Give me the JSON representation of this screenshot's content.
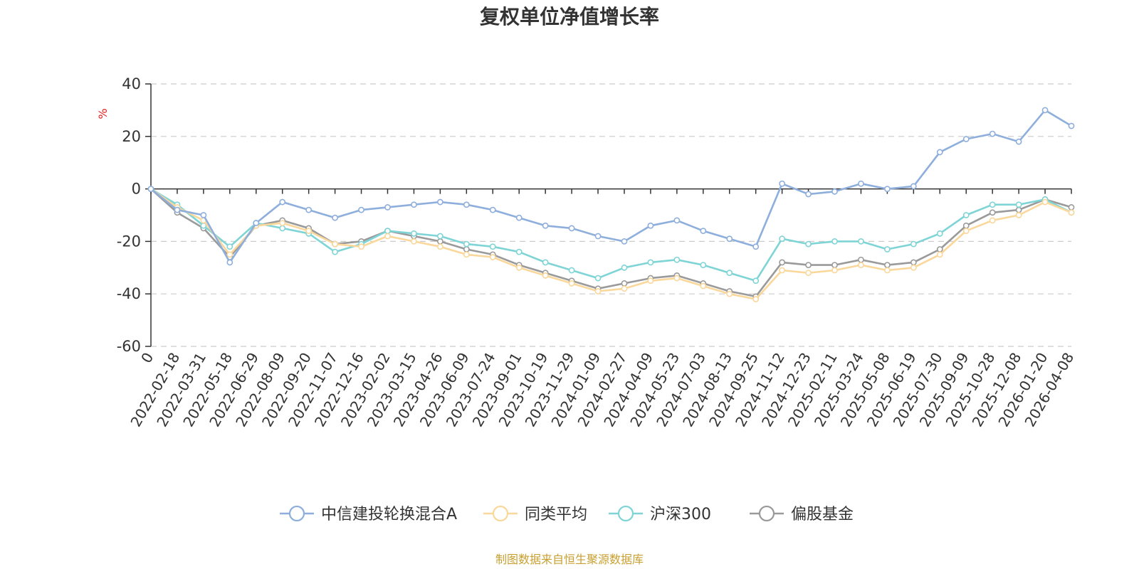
{
  "chart_data": {
    "type": "line",
    "title": "复权单位净值增长率",
    "ylabel": "%",
    "ylim": [
      -60,
      40
    ],
    "yticks": [
      40,
      20,
      0,
      -20,
      -40,
      -60
    ],
    "grid": true,
    "legend_position": "bottom",
    "source": "制图数据来自恒生聚源数据库",
    "x_tick_labels": [
      "0",
      "2022-02-18",
      "2022-03-31",
      "2022-05-18",
      "2022-06-29",
      "2022-08-09",
      "2022-09-20",
      "2022-11-07",
      "2022-12-16",
      "2023-02-02",
      "2023-03-15",
      "2023-04-26",
      "2023-06-09",
      "2023-07-24",
      "2023-09-01",
      "2023-10-19",
      "2023-11-29",
      "2024-01-09",
      "2024-02-27",
      "2024-04-09",
      "2024-05-23",
      "2024-07-03",
      "2024-08-13",
      "2024-09-25",
      "2024-11-12",
      "2024-12-23",
      "2025-02-11",
      "2025-03-24",
      "2025-05-08",
      "2025-06-19",
      "2025-07-30",
      "2025-09-09",
      "2025-10-28",
      "2025-12-08",
      "2026-01-20",
      "2026-04-08"
    ],
    "x_index": [
      0,
      1,
      2,
      3,
      4,
      5,
      6,
      7,
      8,
      9,
      10,
      11,
      12,
      13,
      14,
      15,
      16,
      17,
      18,
      19,
      20,
      21,
      22,
      23,
      24,
      25,
      26,
      27,
      28,
      29,
      30,
      31,
      32,
      33,
      34,
      35
    ],
    "series": [
      {
        "name": "中信建投轮换混合A",
        "color": "#8eaedc",
        "values": [
          0,
          -8,
          -10,
          -28,
          -13,
          -5,
          -8,
          -11,
          -8,
          -7,
          -6,
          -5,
          -6,
          -8,
          -11,
          -14,
          -15,
          -18,
          -20,
          -14,
          -12,
          -16,
          -19,
          -22,
          2,
          -2,
          -1,
          2,
          0,
          1,
          14,
          19,
          21,
          18,
          30,
          24
        ]
      },
      {
        "name": "同类平均",
        "color": "#fad79b",
        "values": [
          0,
          -7,
          -12,
          -25,
          -14,
          -13,
          -16,
          -21,
          -22,
          -18,
          -20,
          -22,
          -25,
          -26,
          -30,
          -33,
          -36,
          -39,
          -38,
          -35,
          -34,
          -37,
          -40,
          -42,
          -31,
          -32,
          -31,
          -29,
          -31,
          -30,
          -25,
          -16,
          -12,
          -10,
          -5,
          -9
        ]
      },
      {
        "name": "沪深300",
        "color": "#7fd4d6",
        "values": [
          0,
          -6,
          -14,
          -22,
          -13,
          -15,
          -17,
          -24,
          -21,
          -16,
          -17,
          -18,
          -21,
          -22,
          -24,
          -28,
          -31,
          -34,
          -30,
          -28,
          -27,
          -29,
          -32,
          -35,
          -19,
          -21,
          -20,
          -20,
          -23,
          -21,
          -17,
          -10,
          -6,
          -6,
          -4,
          -9
        ]
      },
      {
        "name": "偏股基金",
        "color": "#9a9a9a",
        "values": [
          0,
          -9,
          -15,
          -26,
          -14,
          -12,
          -15,
          -21,
          -20,
          -16,
          -18,
          -20,
          -23,
          -25,
          -29,
          -32,
          -35,
          -38,
          -36,
          -34,
          -33,
          -36,
          -39,
          -41,
          -28,
          -29,
          -29,
          -27,
          -29,
          -28,
          -23,
          -14,
          -9,
          -8,
          -4,
          -7
        ]
      }
    ]
  }
}
